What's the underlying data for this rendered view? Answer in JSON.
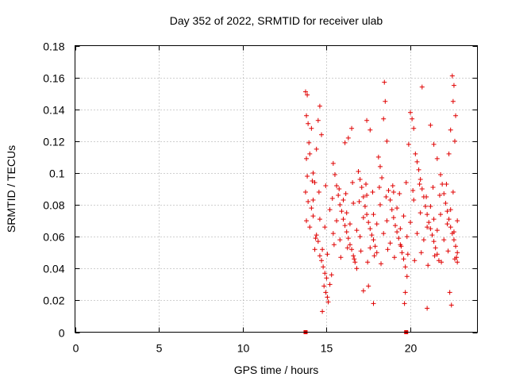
{
  "chart_data": {
    "type": "scatter",
    "title": "Day 352 of 2022, SRMTID for receiver ulab",
    "xlabel": "GPS time / hours",
    "ylabel": "SRMTID / TECUs",
    "xlim": [
      0,
      24
    ],
    "ylim": [
      0,
      0.18
    ],
    "xticks": [
      0,
      5,
      10,
      15,
      20
    ],
    "xtick_labels": [
      "0",
      "5",
      "10",
      "15",
      "20"
    ],
    "yticks": [
      0,
      0.02,
      0.04,
      0.06,
      0.08,
      0.1,
      0.12,
      0.14,
      0.16,
      0.18
    ],
    "ytick_labels": [
      "0",
      "0.02",
      "0.04",
      "0.06",
      "0.08",
      "0.1",
      "0.12",
      "0.14",
      "0.16",
      "0.18"
    ],
    "grid": true,
    "marker": "+",
    "color": "#e00000",
    "series": [
      {
        "name": "SRMTID",
        "points": [
          [
            13.75,
            0.151
          ],
          [
            13.85,
            0.149
          ],
          [
            13.8,
            0.136
          ],
          [
            13.9,
            0.131
          ],
          [
            14.1,
            0.128
          ],
          [
            13.95,
            0.119
          ],
          [
            13.8,
            0.109
          ],
          [
            14.0,
            0.112
          ],
          [
            14.2,
            0.1
          ],
          [
            13.85,
            0.098
          ],
          [
            14.3,
            0.094
          ],
          [
            13.75,
            0.088
          ],
          [
            13.9,
            0.082
          ],
          [
            14.1,
            0.078
          ],
          [
            14.2,
            0.073
          ],
          [
            13.8,
            0.07
          ],
          [
            14.0,
            0.066
          ],
          [
            14.4,
            0.061
          ],
          [
            14.5,
            0.057
          ],
          [
            14.3,
            0.052
          ],
          [
            14.6,
            0.048
          ],
          [
            14.7,
            0.045
          ],
          [
            14.8,
            0.041
          ],
          [
            14.9,
            0.037
          ],
          [
            15.0,
            0.034
          ],
          [
            14.85,
            0.029
          ],
          [
            14.95,
            0.025
          ],
          [
            15.05,
            0.022
          ],
          [
            15.1,
            0.019
          ],
          [
            14.75,
            0.013
          ],
          [
            15.2,
            0.03
          ],
          [
            15.3,
            0.036
          ],
          [
            14.6,
            0.142
          ],
          [
            14.5,
            0.133
          ],
          [
            14.7,
            0.124
          ],
          [
            14.4,
            0.115
          ],
          [
            15.4,
            0.106
          ],
          [
            15.5,
            0.099
          ],
          [
            15.6,
            0.092
          ],
          [
            15.7,
            0.086
          ],
          [
            15.8,
            0.08
          ],
          [
            15.9,
            0.076
          ],
          [
            16.0,
            0.071
          ],
          [
            16.1,
            0.067
          ],
          [
            16.2,
            0.063
          ],
          [
            16.3,
            0.059
          ],
          [
            16.4,
            0.055
          ],
          [
            16.5,
            0.052
          ],
          [
            16.6,
            0.048
          ],
          [
            16.7,
            0.044
          ],
          [
            16.8,
            0.04
          ],
          [
            16.3,
            0.122
          ],
          [
            16.5,
            0.128
          ],
          [
            16.1,
            0.119
          ],
          [
            16.9,
            0.101
          ],
          [
            17.0,
            0.096
          ],
          [
            17.1,
            0.091
          ],
          [
            17.2,
            0.085
          ],
          [
            17.3,
            0.079
          ],
          [
            17.4,
            0.074
          ],
          [
            17.5,
            0.069
          ],
          [
            17.6,
            0.065
          ],
          [
            17.7,
            0.061
          ],
          [
            17.8,
            0.058
          ],
          [
            17.9,
            0.054
          ],
          [
            18.0,
            0.05
          ],
          [
            17.4,
            0.133
          ],
          [
            17.6,
            0.127
          ],
          [
            17.5,
            0.029
          ],
          [
            17.2,
            0.026
          ],
          [
            17.8,
            0.018
          ],
          [
            18.1,
            0.11
          ],
          [
            18.2,
            0.104
          ],
          [
            18.3,
            0.097
          ],
          [
            18.4,
            0.134
          ],
          [
            18.5,
            0.145
          ],
          [
            18.45,
            0.157
          ],
          [
            18.6,
            0.12
          ],
          [
            18.7,
            0.089
          ],
          [
            18.8,
            0.083
          ],
          [
            18.9,
            0.077
          ],
          [
            19.0,
            0.072
          ],
          [
            19.1,
            0.067
          ],
          [
            19.2,
            0.063
          ],
          [
            19.3,
            0.059
          ],
          [
            19.4,
            0.055
          ],
          [
            19.5,
            0.05
          ],
          [
            19.6,
            0.046
          ],
          [
            19.7,
            0.041
          ],
          [
            19.8,
            0.035
          ],
          [
            19.7,
            0.025
          ],
          [
            19.65,
            0.018
          ],
          [
            20.0,
            0.138
          ],
          [
            20.1,
            0.134
          ],
          [
            20.2,
            0.128
          ],
          [
            19.9,
            0.118
          ],
          [
            20.3,
            0.112
          ],
          [
            20.4,
            0.107
          ],
          [
            20.5,
            0.102
          ],
          [
            20.6,
            0.096
          ],
          [
            20.7,
            0.09
          ],
          [
            20.8,
            0.085
          ],
          [
            20.9,
            0.079
          ],
          [
            21.0,
            0.074
          ],
          [
            21.1,
            0.069
          ],
          [
            21.2,
            0.065
          ],
          [
            21.3,
            0.061
          ],
          [
            21.4,
            0.057
          ],
          [
            21.5,
            0.053
          ],
          [
            21.6,
            0.049
          ],
          [
            21.7,
            0.045
          ],
          [
            20.7,
            0.154
          ],
          [
            21.0,
            0.015
          ],
          [
            21.2,
            0.13
          ],
          [
            21.4,
            0.118
          ],
          [
            21.6,
            0.109
          ],
          [
            21.8,
            0.099
          ],
          [
            21.9,
            0.093
          ],
          [
            22.0,
            0.087
          ],
          [
            22.1,
            0.081
          ],
          [
            22.2,
            0.076
          ],
          [
            22.3,
            0.071
          ],
          [
            22.4,
            0.066
          ],
          [
            22.5,
            0.062
          ],
          [
            22.6,
            0.058
          ],
          [
            22.7,
            0.054
          ],
          [
            22.8,
            0.05
          ],
          [
            22.5,
            0.161
          ],
          [
            22.6,
            0.155
          ],
          [
            22.55,
            0.145
          ],
          [
            22.7,
            0.136
          ],
          [
            22.4,
            0.127
          ],
          [
            22.65,
            0.12
          ],
          [
            22.3,
            0.112
          ],
          [
            22.45,
            0.017
          ],
          [
            22.35,
            0.025
          ],
          [
            22.75,
            0.047
          ],
          [
            22.8,
            0.044
          ],
          [
            14.2,
            0.083
          ],
          [
            14.6,
            0.071
          ],
          [
            14.9,
            0.066
          ],
          [
            15.2,
            0.077
          ],
          [
            15.4,
            0.062
          ],
          [
            15.6,
            0.07
          ],
          [
            15.8,
            0.058
          ],
          [
            16.0,
            0.083
          ],
          [
            16.2,
            0.075
          ],
          [
            16.4,
            0.068
          ],
          [
            16.6,
            0.081
          ],
          [
            16.8,
            0.064
          ],
          [
            17.0,
            0.06
          ],
          [
            17.2,
            0.072
          ],
          [
            17.4,
            0.086
          ],
          [
            17.6,
            0.053
          ],
          [
            17.8,
            0.074
          ],
          [
            18.0,
            0.068
          ],
          [
            18.2,
            0.08
          ],
          [
            18.4,
            0.062
          ],
          [
            18.6,
            0.07
          ],
          [
            18.8,
            0.056
          ],
          [
            19.0,
            0.088
          ],
          [
            19.2,
            0.078
          ],
          [
            19.4,
            0.065
          ],
          [
            19.6,
            0.073
          ],
          [
            19.8,
            0.06
          ],
          [
            20.0,
            0.069
          ],
          [
            20.2,
            0.083
          ],
          [
            20.4,
            0.062
          ],
          [
            20.6,
            0.075
          ],
          [
            20.8,
            0.058
          ],
          [
            21.0,
            0.066
          ],
          [
            21.2,
            0.079
          ],
          [
            21.4,
            0.071
          ],
          [
            21.6,
            0.064
          ],
          [
            21.8,
            0.074
          ],
          [
            22.0,
            0.058
          ],
          [
            22.2,
            0.068
          ],
          [
            22.4,
            0.077
          ],
          [
            22.6,
            0.063
          ],
          [
            22.8,
            0.07
          ],
          [
            14.35,
            0.059
          ],
          [
            14.75,
            0.052
          ],
          [
            15.05,
            0.049
          ],
          [
            15.45,
            0.055
          ],
          [
            15.85,
            0.047
          ],
          [
            16.25,
            0.053
          ],
          [
            16.65,
            0.046
          ],
          [
            17.05,
            0.051
          ],
          [
            17.45,
            0.044
          ],
          [
            17.85,
            0.048
          ],
          [
            18.25,
            0.043
          ],
          [
            18.65,
            0.052
          ],
          [
            19.05,
            0.047
          ],
          [
            19.45,
            0.054
          ],
          [
            19.85,
            0.049
          ],
          [
            20.25,
            0.045
          ],
          [
            20.65,
            0.05
          ],
          [
            21.05,
            0.042
          ],
          [
            21.45,
            0.048
          ],
          [
            21.85,
            0.044
          ],
          [
            22.25,
            0.051
          ],
          [
            22.65,
            0.046
          ],
          [
            14.15,
            0.095
          ],
          [
            14.55,
            0.088
          ],
          [
            14.95,
            0.092
          ],
          [
            15.35,
            0.084
          ],
          [
            15.75,
            0.09
          ],
          [
            16.15,
            0.087
          ],
          [
            16.55,
            0.094
          ],
          [
            16.95,
            0.082
          ],
          [
            17.35,
            0.093
          ],
          [
            17.75,
            0.088
          ],
          [
            18.15,
            0.091
          ],
          [
            18.55,
            0.085
          ],
          [
            18.95,
            0.092
          ],
          [
            19.35,
            0.087
          ],
          [
            19.75,
            0.094
          ],
          [
            20.15,
            0.089
          ],
          [
            20.55,
            0.093
          ],
          [
            20.95,
            0.085
          ],
          [
            21.35,
            0.091
          ],
          [
            21.75,
            0.086
          ],
          [
            22.15,
            0.093
          ],
          [
            22.55,
            0.088
          ]
        ]
      }
    ],
    "axis_markers": [
      {
        "x": 13.75,
        "y": 0
      },
      {
        "x": 19.75,
        "y": 0
      }
    ]
  }
}
